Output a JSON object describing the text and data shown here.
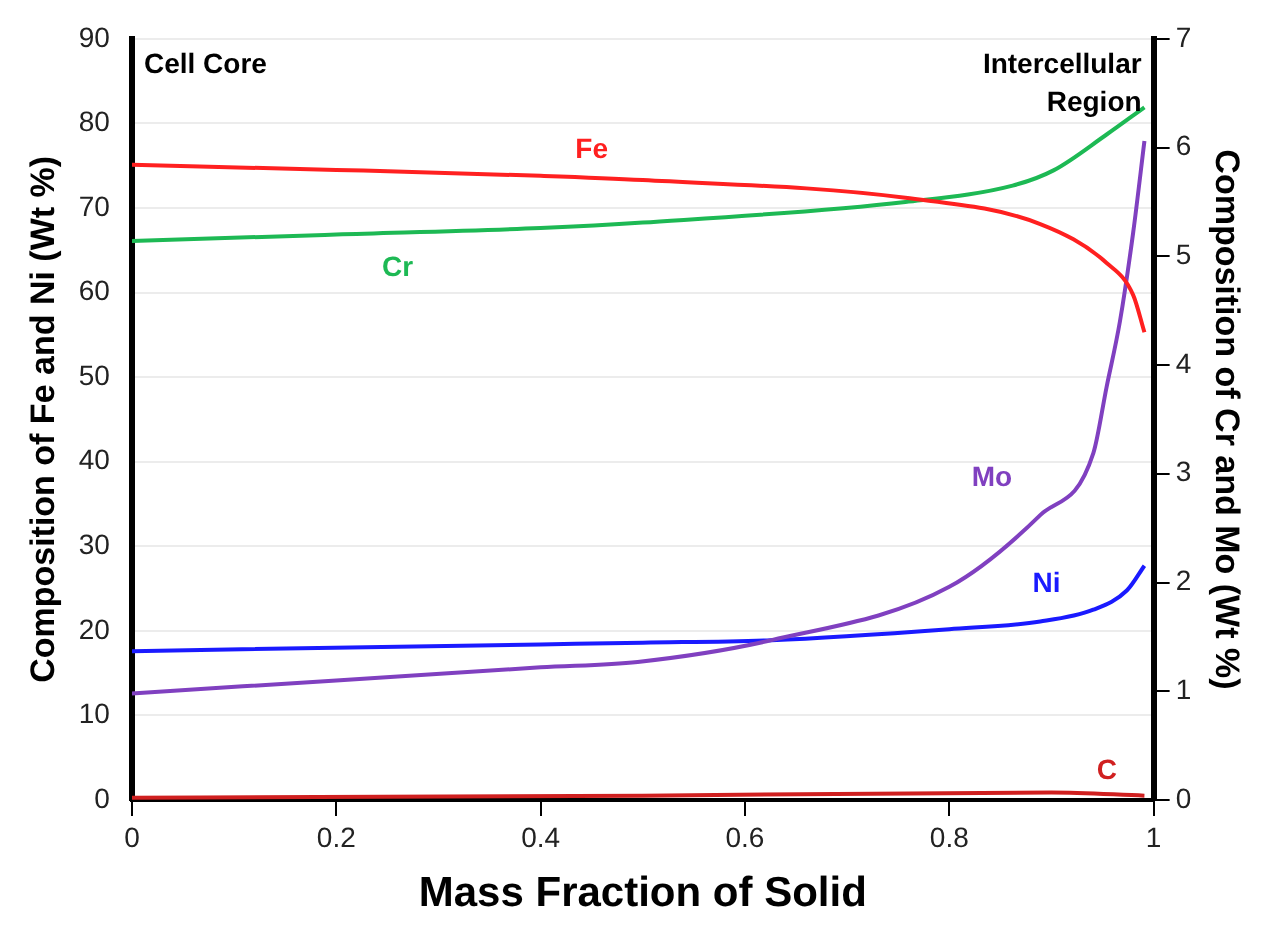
{
  "chart_data": {
    "type": "line",
    "xlabel": "Mass Fraction of Solid",
    "ylabel": "Composition of Fe and Ni (Wt %)",
    "y2label": "Composition of Cr and Mo (Wt %)",
    "annotations": [
      "Cell Core",
      "Intercellular Region"
    ],
    "xlim": [
      0,
      1
    ],
    "xticks": [
      0,
      0.2,
      0.4,
      0.6,
      0.8,
      1
    ],
    "ylim": [
      0,
      90
    ],
    "yticks": [
      0,
      10,
      20,
      30,
      40,
      50,
      60,
      70,
      80,
      90
    ],
    "y2lim": [
      0,
      7
    ],
    "y2ticks": [
      0,
      1,
      2,
      3,
      4,
      5,
      6,
      7
    ],
    "grid": "y",
    "legend": false,
    "marker": "none",
    "line_style": "solid",
    "series": [
      {
        "name": "Fe",
        "color": "#ff2020",
        "x": [
          0,
          0.2,
          0.4,
          0.5,
          0.757,
          0.889,
          0.954,
          0.98,
          0.991
        ],
        "values": [
          75.1,
          74.5,
          73.8,
          73.3,
          71.2,
          68.1,
          63.5,
          59.7,
          55.3
        ]
      },
      {
        "name": "Cr",
        "color": "#1db954",
        "axis": "y2",
        "x": [
          0,
          0.2,
          0.4,
          0.5,
          0.757,
          0.862,
          0.902,
          0.954,
          0.991
        ],
        "values": [
          5.14,
          5.2,
          5.26,
          5.31,
          5.5,
          5.65,
          5.79,
          6.12,
          6.37
        ]
      },
      {
        "name": "Mo",
        "color": "#8040c0",
        "axis": "y2",
        "x": [
          0,
          0.2,
          0.4,
          0.495,
          0.626,
          0.8,
          0.889,
          0.941,
          0.954,
          0.967,
          0.98,
          0.991
        ],
        "values": [
          0.98,
          1.1,
          1.22,
          1.27,
          1.47,
          1.96,
          2.62,
          3.19,
          3.8,
          4.4,
          5.22,
          6.06
        ]
      },
      {
        "name": "Ni",
        "color": "#1a1aff",
        "x": [
          0,
          0.4,
          0.5,
          0.626,
          0.8,
          0.889,
          0.941,
          0.974,
          0.991
        ],
        "values": [
          17.6,
          18.4,
          18.6,
          18.9,
          20.2,
          21.1,
          22.5,
          24.8,
          27.7
        ]
      },
      {
        "name": "C",
        "color": "#d02020",
        "axis": "y2",
        "x": [
          0,
          0.5,
          0.9,
          0.991
        ],
        "values": [
          0.02,
          0.04,
          0.07,
          0.04
        ]
      }
    ]
  }
}
